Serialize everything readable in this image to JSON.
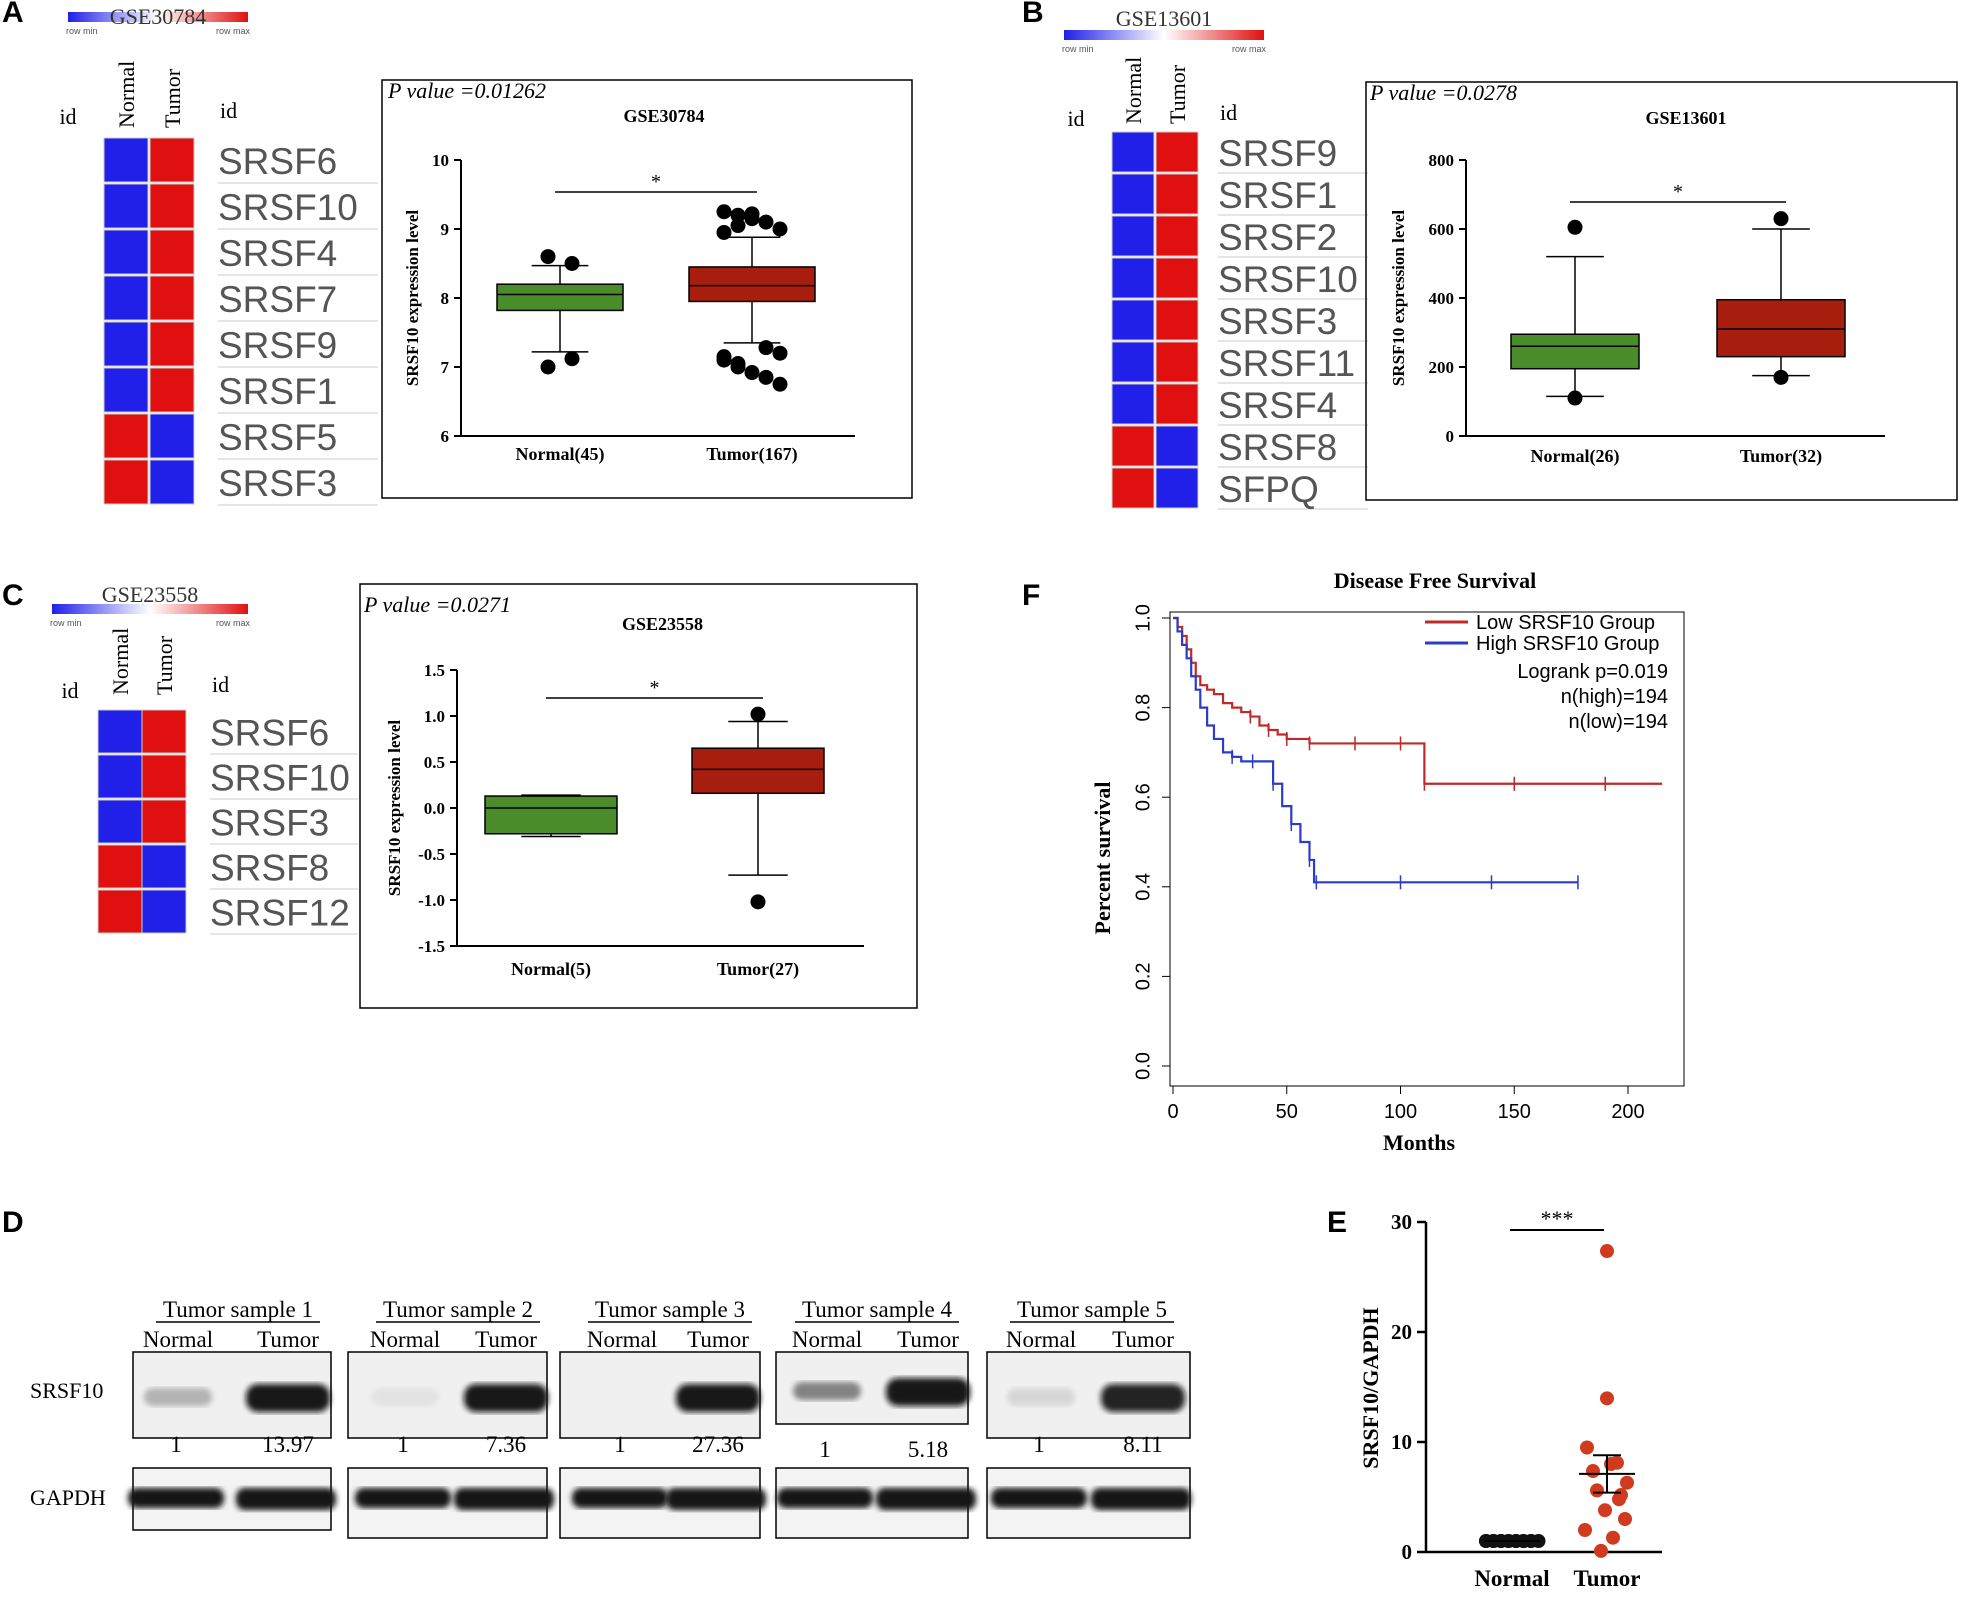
{
  "panels": {
    "A": "A",
    "B": "B",
    "C": "C",
    "D": "D",
    "E": "E",
    "F": "F"
  },
  "legend": {
    "row_min": "row min",
    "row_max": "row max"
  },
  "colors": {
    "blue": "#2020e8",
    "red": "#e01010",
    "green": "#4a8c2a",
    "darkred": "#a81e0e",
    "survival_low": "#c0282a",
    "survival_high": "#2a3cc8",
    "dot_red": "#d03a1e"
  },
  "heatmaps": [
    {
      "key": "A",
      "title": "GSE30784",
      "id": "id",
      "cols": [
        "Normal",
        "Tumor"
      ],
      "rows": [
        {
          "gene": "SRSF6",
          "normal": "blue",
          "tumor": "red"
        },
        {
          "gene": "SRSF10",
          "normal": "blue",
          "tumor": "red"
        },
        {
          "gene": "SRSF4",
          "normal": "blue",
          "tumor": "red"
        },
        {
          "gene": "SRSF7",
          "normal": "blue",
          "tumor": "red"
        },
        {
          "gene": "SRSF9",
          "normal": "blue",
          "tumor": "red"
        },
        {
          "gene": "SRSF1",
          "normal": "blue",
          "tumor": "red"
        },
        {
          "gene": "SRSF5",
          "normal": "red",
          "tumor": "blue"
        },
        {
          "gene": "SRSF3",
          "normal": "red",
          "tumor": "blue"
        }
      ]
    },
    {
      "key": "B",
      "title": "GSE13601",
      "id": "id",
      "cols": [
        "Normal",
        "Tumor"
      ],
      "rows": [
        {
          "gene": "SRSF9",
          "normal": "blue",
          "tumor": "red"
        },
        {
          "gene": "SRSF1",
          "normal": "blue",
          "tumor": "red"
        },
        {
          "gene": "SRSF2",
          "normal": "blue",
          "tumor": "red"
        },
        {
          "gene": "SRSF10",
          "normal": "blue",
          "tumor": "red"
        },
        {
          "gene": "SRSF3",
          "normal": "blue",
          "tumor": "red"
        },
        {
          "gene": "SRSF11",
          "normal": "blue",
          "tumor": "red"
        },
        {
          "gene": "SRSF4",
          "normal": "blue",
          "tumor": "red"
        },
        {
          "gene": "SRSF8",
          "normal": "red",
          "tumor": "blue"
        },
        {
          "gene": "SFPQ",
          "normal": "red",
          "tumor": "blue"
        }
      ]
    },
    {
      "key": "C",
      "title": "GSE23558",
      "id": "id",
      "cols": [
        "Normal",
        "Tumor"
      ],
      "rows": [
        {
          "gene": "SRSF6",
          "normal": "blue",
          "tumor": "red"
        },
        {
          "gene": "SRSF10",
          "normal": "blue",
          "tumor": "red"
        },
        {
          "gene": "SRSF3",
          "normal": "blue",
          "tumor": "red"
        },
        {
          "gene": "SRSF8",
          "normal": "red",
          "tumor": "blue"
        },
        {
          "gene": "SRSF12",
          "normal": "red",
          "tumor": "blue"
        }
      ]
    }
  ],
  "chart_data": [
    {
      "type": "box",
      "panel": "A",
      "title": "GSE30784",
      "pvalue": "P value =0.01262",
      "ylabel": "SRSF10 expression level",
      "ylim": [
        6,
        10
      ],
      "yticks": [
        6,
        7,
        8,
        9,
        10
      ],
      "significance": "*",
      "groups": [
        {
          "name": "Normal(45)",
          "q1": 7.82,
          "median": 8.05,
          "q3": 8.2,
          "whisker_low": 7.22,
          "whisker_high": 8.47,
          "outliers": [
            8.6,
            8.5,
            7.0,
            7.12
          ]
        },
        {
          "name": "Tumor(167)",
          "q1": 7.95,
          "median": 8.18,
          "q3": 8.45,
          "whisker_low": 7.35,
          "whisker_high": 8.88,
          "outliers": [
            9.25,
            9.2,
            9.15,
            9.1,
            9.0,
            8.95,
            9.05,
            9.22,
            7.28,
            7.2,
            7.1,
            7.0,
            6.92,
            6.85,
            6.75,
            7.15,
            7.05
          ]
        }
      ]
    },
    {
      "type": "box",
      "panel": "B",
      "title": "GSE13601",
      "pvalue": "P value =0.0278",
      "ylabel": "SRSF10 expression level",
      "ylim": [
        0,
        800
      ],
      "yticks": [
        0,
        200,
        400,
        600,
        800
      ],
      "significance": "*",
      "groups": [
        {
          "name": "Normal(26)",
          "q1": 195,
          "median": 260,
          "q3": 295,
          "whisker_low": 115,
          "whisker_high": 520,
          "outliers": [
            605,
            110
          ]
        },
        {
          "name": "Tumor(32)",
          "q1": 230,
          "median": 310,
          "q3": 395,
          "whisker_low": 175,
          "whisker_high": 600,
          "outliers": [
            630,
            170
          ]
        }
      ]
    },
    {
      "type": "box",
      "panel": "C",
      "title": "GSE23558",
      "pvalue": "P value =0.0271",
      "ylabel": "SRSF10 expression level",
      "ylim": [
        -1.5,
        1.5
      ],
      "yticks": [
        -1.5,
        -1.0,
        -0.5,
        0.0,
        0.5,
        1.0,
        1.5
      ],
      "significance": "*",
      "groups": [
        {
          "name": "Normal(5)",
          "q1": -0.28,
          "median": 0.0,
          "q3": 0.13,
          "whisker_low": -0.31,
          "whisker_high": 0.14,
          "outliers": []
        },
        {
          "name": "Tumor(27)",
          "q1": 0.16,
          "median": 0.42,
          "q3": 0.65,
          "whisker_low": -0.73,
          "whisker_high": 0.94,
          "outliers": [
            1.02,
            -1.02
          ]
        }
      ]
    },
    {
      "type": "line",
      "panel": "F",
      "title": "Disease Free Survival",
      "xlabel": "Months",
      "ylabel": "Percent survival",
      "xlim": [
        0,
        220
      ],
      "ylim": [
        0,
        1
      ],
      "xticks": [
        0,
        50,
        100,
        150,
        200
      ],
      "yticks": [
        0.0,
        0.2,
        0.4,
        0.6,
        0.8,
        1.0
      ],
      "legend": [
        "Low SRSF10 Group",
        "High SRSF10 Group"
      ],
      "annotations": [
        "Logrank p=0.019",
        "n(high)=194",
        "n(low)=194"
      ],
      "series": [
        {
          "name": "Low SRSF10 Group",
          "x": [
            0,
            2,
            4,
            6,
            8,
            10,
            12,
            15,
            18,
            22,
            26,
            30,
            34,
            38,
            42,
            46,
            50,
            55,
            60,
            70,
            80,
            90,
            100,
            110,
            110.5,
            130,
            150,
            170,
            190,
            215
          ],
          "y": [
            1.0,
            0.98,
            0.96,
            0.93,
            0.9,
            0.87,
            0.85,
            0.84,
            0.83,
            0.81,
            0.8,
            0.79,
            0.78,
            0.76,
            0.75,
            0.74,
            0.73,
            0.73,
            0.72,
            0.72,
            0.72,
            0.72,
            0.72,
            0.72,
            0.63,
            0.63,
            0.63,
            0.63,
            0.63,
            0.63
          ]
        },
        {
          "name": "High SRSF10 Group",
          "x": [
            0,
            2,
            4,
            6,
            8,
            10,
            12,
            15,
            18,
            22,
            26,
            30,
            35,
            40,
            44,
            48,
            52,
            56,
            60,
            62,
            63,
            80,
            100,
            120,
            140,
            160,
            178
          ],
          "y": [
            1.0,
            0.97,
            0.94,
            0.91,
            0.87,
            0.84,
            0.8,
            0.76,
            0.73,
            0.7,
            0.69,
            0.68,
            0.68,
            0.68,
            0.63,
            0.58,
            0.54,
            0.5,
            0.46,
            0.41,
            0.41,
            0.41,
            0.41,
            0.41,
            0.41,
            0.41,
            0.41
          ]
        }
      ]
    },
    {
      "type": "scatter",
      "panel": "E",
      "ylabel": "SRSF10/GAPDH",
      "ylim": [
        0,
        30
      ],
      "yticks": [
        0,
        10,
        20,
        30
      ],
      "significance": "***",
      "categories": [
        "Normal",
        "Tumor"
      ],
      "groups": [
        {
          "name": "Normal",
          "values": [
            1,
            1,
            1,
            1,
            1,
            1,
            1,
            1,
            1,
            1,
            1,
            1,
            1,
            1,
            1
          ],
          "mean": 1,
          "sem": 0
        },
        {
          "name": "Tumor",
          "values": [
            27.36,
            13.97,
            8.11,
            7.36,
            5.18,
            9.5,
            8.0,
            6.3,
            5.6,
            4.8,
            3.8,
            3.0,
            2.0,
            1.3,
            0.1
          ],
          "mean": 7.1,
          "sem": 1.7
        }
      ]
    }
  ],
  "western": {
    "row_labels": [
      "SRSF10",
      "GAPDH"
    ],
    "lane_labels": [
      "Normal",
      "Tumor"
    ],
    "samples": [
      {
        "title": "Tumor sample 1",
        "normal": "1",
        "tumor": "13.97"
      },
      {
        "title": "Tumor sample 2",
        "normal": "1",
        "tumor": "7.36"
      },
      {
        "title": "Tumor sample 3",
        "normal": "1",
        "tumor": "27.36"
      },
      {
        "title": "Tumor sample 4",
        "normal": "1",
        "tumor": "5.18"
      },
      {
        "title": "Tumor sample 5",
        "normal": "1",
        "tumor": "8.11"
      }
    ]
  }
}
